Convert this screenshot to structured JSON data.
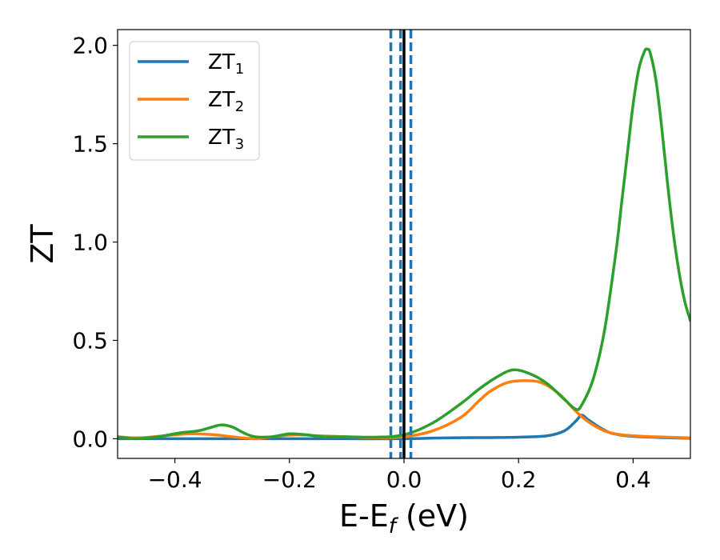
{
  "chart_data": {
    "type": "line",
    "xlabel": {
      "main": "E-E",
      "sub": "f",
      "tail": " (eV)"
    },
    "ylabel": "ZT",
    "xlim": [
      -0.5,
      0.5
    ],
    "ylim": [
      -0.1,
      2.08
    ],
    "x_ticks": [
      -0.4,
      -0.2,
      0.0,
      0.2,
      0.4
    ],
    "x_tick_labels": [
      "−0.4",
      "−0.2",
      "0.0",
      "0.2",
      "0.4"
    ],
    "y_ticks": [
      0.0,
      0.5,
      1.0,
      1.5,
      2.0
    ],
    "y_tick_labels": [
      "0.0",
      "0.5",
      "1.0",
      "1.5",
      "2.0"
    ],
    "grid": false,
    "legend_position": "top-left",
    "series": [
      {
        "name": "ZT",
        "sub": "1",
        "color": "#1f77b4",
        "x": [
          -0.5,
          -0.45,
          -0.4,
          -0.3,
          -0.2,
          -0.1,
          0.0,
          0.05,
          0.1,
          0.15,
          0.2,
          0.25,
          0.28,
          0.3,
          0.31,
          0.32,
          0.34,
          0.36,
          0.38,
          0.4,
          0.45,
          0.5
        ],
        "y": [
          0.0,
          0.0,
          0.0,
          0.0,
          0.0,
          0.0,
          0.0,
          0.003,
          0.005,
          0.006,
          0.008,
          0.015,
          0.04,
          0.09,
          0.12,
          0.1,
          0.06,
          0.03,
          0.018,
          0.012,
          0.006,
          0.002
        ]
      },
      {
        "name": "ZT",
        "sub": "2",
        "color": "#ff7f0e",
        "x": [
          -0.5,
          -0.46,
          -0.4,
          -0.37,
          -0.33,
          -0.3,
          -0.26,
          -0.23,
          -0.19,
          -0.15,
          -0.1,
          -0.05,
          0.0,
          0.05,
          0.1,
          0.13,
          0.15,
          0.18,
          0.21,
          0.24,
          0.27,
          0.3,
          0.32,
          0.35,
          0.38,
          0.42,
          0.46,
          0.5
        ],
        "y": [
          0.01,
          0.005,
          0.02,
          0.025,
          0.02,
          0.01,
          0.0,
          0.01,
          0.02,
          0.015,
          0.01,
          0.005,
          0.01,
          0.04,
          0.11,
          0.19,
          0.24,
          0.285,
          0.295,
          0.285,
          0.23,
          0.14,
          0.09,
          0.04,
          0.02,
          0.012,
          0.008,
          0.004
        ]
      },
      {
        "name": "ZT",
        "sub": "3",
        "color": "#2ca02c",
        "x": [
          -0.5,
          -0.47,
          -0.43,
          -0.39,
          -0.36,
          -0.34,
          -0.32,
          -0.3,
          -0.28,
          -0.26,
          -0.23,
          -0.2,
          -0.17,
          -0.14,
          -0.1,
          -0.05,
          0.0,
          0.05,
          0.1,
          0.13,
          0.16,
          0.19,
          0.22,
          0.25,
          0.28,
          0.3,
          0.31,
          0.33,
          0.35,
          0.37,
          0.38,
          0.39,
          0.4,
          0.41,
          0.42,
          0.425,
          0.43,
          0.44,
          0.45,
          0.46,
          0.47,
          0.48,
          0.49,
          0.5
        ],
        "y": [
          0.01,
          0.0,
          0.01,
          0.03,
          0.04,
          0.055,
          0.07,
          0.06,
          0.03,
          0.01,
          0.01,
          0.025,
          0.02,
          0.01,
          0.01,
          0.008,
          0.02,
          0.08,
          0.18,
          0.25,
          0.31,
          0.35,
          0.33,
          0.28,
          0.2,
          0.15,
          0.17,
          0.3,
          0.55,
          0.95,
          1.2,
          1.45,
          1.7,
          1.88,
          1.97,
          1.98,
          1.96,
          1.82,
          1.58,
          1.3,
          1.05,
          0.85,
          0.7,
          0.6
        ]
      }
    ],
    "vlines": [
      {
        "x": 0.0,
        "color": "#000000",
        "style": "solid"
      },
      {
        "x": -0.023,
        "color": "#1f77b4",
        "style": "dashed"
      },
      {
        "x": -0.006,
        "color": "#1f77b4",
        "style": "dashed"
      },
      {
        "x": 0.012,
        "color": "#1f77b4",
        "style": "dashed"
      }
    ]
  }
}
